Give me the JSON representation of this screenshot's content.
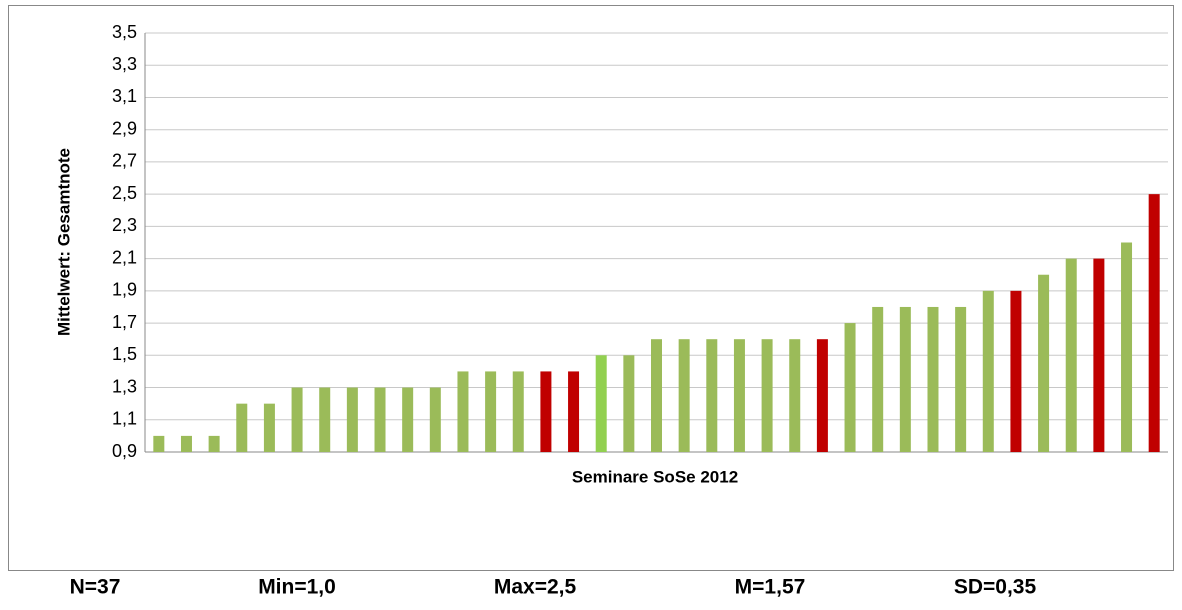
{
  "chart_data": {
    "type": "bar",
    "xlabel": "Seminare SoSe 2012",
    "ylabel": "Mittelwert: Gesamtnote",
    "values": [
      1.0,
      1.0,
      1.0,
      1.2,
      1.2,
      1.3,
      1.3,
      1.3,
      1.3,
      1.3,
      1.3,
      1.4,
      1.4,
      1.4,
      1.4,
      1.4,
      1.5,
      1.5,
      1.6,
      1.6,
      1.6,
      1.6,
      1.6,
      1.6,
      1.6,
      1.7,
      1.8,
      1.8,
      1.8,
      1.8,
      1.9,
      1.9,
      2.0,
      2.1,
      2.1,
      2.2,
      2.5
    ],
    "colors": [
      "#9bbb59",
      "#9bbb59",
      "#9bbb59",
      "#9bbb59",
      "#9bbb59",
      "#9bbb59",
      "#9bbb59",
      "#9bbb59",
      "#9bbb59",
      "#9bbb59",
      "#9bbb59",
      "#9bbb59",
      "#9bbb59",
      "#9bbb59",
      "#c00000",
      "#c00000",
      "#92d050",
      "#9bbb59",
      "#9bbb59",
      "#9bbb59",
      "#9bbb59",
      "#9bbb59",
      "#9bbb59",
      "#9bbb59",
      "#c00000",
      "#9bbb59",
      "#9bbb59",
      "#9bbb59",
      "#9bbb59",
      "#9bbb59",
      "#9bbb59",
      "#c00000",
      "#9bbb59",
      "#9bbb59",
      "#c00000",
      "#9bbb59",
      "#c00000"
    ],
    "ylim": [
      0.9,
      3.5
    ],
    "yticks": [
      {
        "value": 0.9,
        "label": "0,9"
      },
      {
        "value": 1.1,
        "label": "1,1"
      },
      {
        "value": 1.3,
        "label": "1,3"
      },
      {
        "value": 1.5,
        "label": "1,5"
      },
      {
        "value": 1.7,
        "label": "1,7"
      },
      {
        "value": 1.9,
        "label": "1,9"
      },
      {
        "value": 2.1,
        "label": "2,1"
      },
      {
        "value": 2.3,
        "label": "2,3"
      },
      {
        "value": 2.5,
        "label": "2,5"
      },
      {
        "value": 2.7,
        "label": "2,7"
      },
      {
        "value": 2.9,
        "label": "2,9"
      },
      {
        "value": 3.1,
        "label": "3,1"
      },
      {
        "value": 3.3,
        "label": "3,3"
      },
      {
        "value": 3.5,
        "label": "3,5"
      }
    ],
    "grid": true
  },
  "footer": [
    "N=37",
    "Min=1,0",
    "Max=2,5",
    "M=1,57",
    "SD=0,35"
  ]
}
